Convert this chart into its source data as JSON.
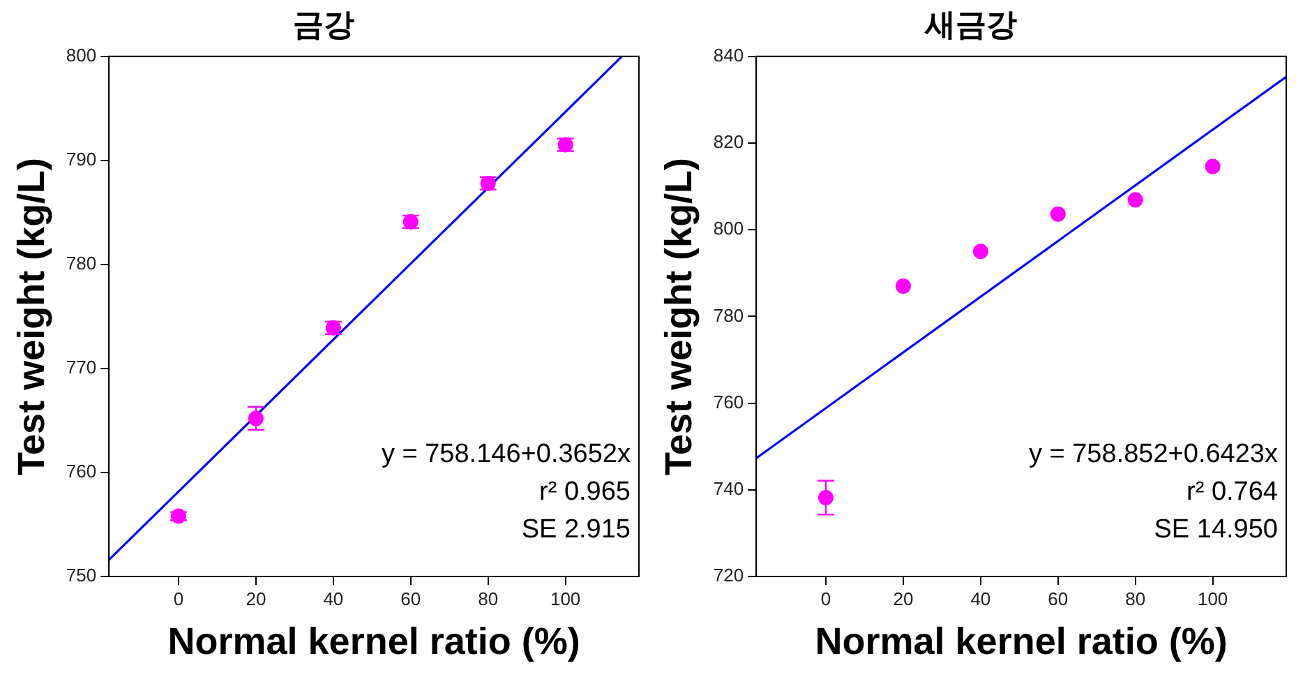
{
  "chart_data": [
    {
      "type": "scatter",
      "title": "금강",
      "xlabel": "Normal kernel ratio (%)",
      "ylabel": "Test weight (kg/L)",
      "xlim": [
        -18,
        119
      ],
      "xticks": [
        0,
        20,
        40,
        60,
        80,
        100
      ],
      "ylim": [
        750,
        800
      ],
      "yticks": [
        750,
        760,
        770,
        780,
        790,
        800
      ],
      "grid": false,
      "legend": false,
      "annotations": [
        "y = 758.146+0.3652x",
        "r² 0.965",
        "SE 2.915"
      ],
      "series": [
        {
          "marker": "circle",
          "color": "#ff00ff",
          "x": [
            0,
            20,
            40,
            60,
            80,
            100
          ],
          "values": [
            755.8,
            765.2,
            773.9,
            784.1,
            787.8,
            791.5
          ],
          "errors": [
            0.4,
            1.1,
            0.6,
            0.6,
            0.6,
            0.6
          ]
        },
        {
          "type": "line",
          "marker": "none",
          "color": "#0000ff",
          "x": [
            -18,
            114.6
          ],
          "values": [
            751.6,
            800
          ]
        }
      ]
    },
    {
      "type": "scatter",
      "title": "새금강",
      "xlabel": "Normal kernel ratio (%)",
      "ylabel": "Test weight (kg/L)",
      "xlim": [
        -18,
        119
      ],
      "xticks": [
        0,
        20,
        40,
        60,
        80,
        100
      ],
      "ylim": [
        720,
        840
      ],
      "yticks": [
        720,
        740,
        760,
        780,
        800,
        820,
        840
      ],
      "grid": false,
      "legend": false,
      "annotations": [
        "y = 758.852+0.6423x",
        "r² 0.764",
        "SE 14.950"
      ],
      "series": [
        {
          "marker": "circle",
          "color": "#ff00ff",
          "x": [
            0,
            20,
            40,
            60,
            80,
            100
          ],
          "values": [
            738.2,
            787.0,
            795.0,
            803.6,
            806.9,
            814.6
          ],
          "errors": [
            3.9,
            null,
            null,
            null,
            null,
            null
          ]
        },
        {
          "type": "line",
          "marker": "none",
          "color": "#0000ff",
          "x": [
            -18,
            119
          ],
          "values": [
            747.3,
            835.3
          ]
        }
      ]
    }
  ]
}
